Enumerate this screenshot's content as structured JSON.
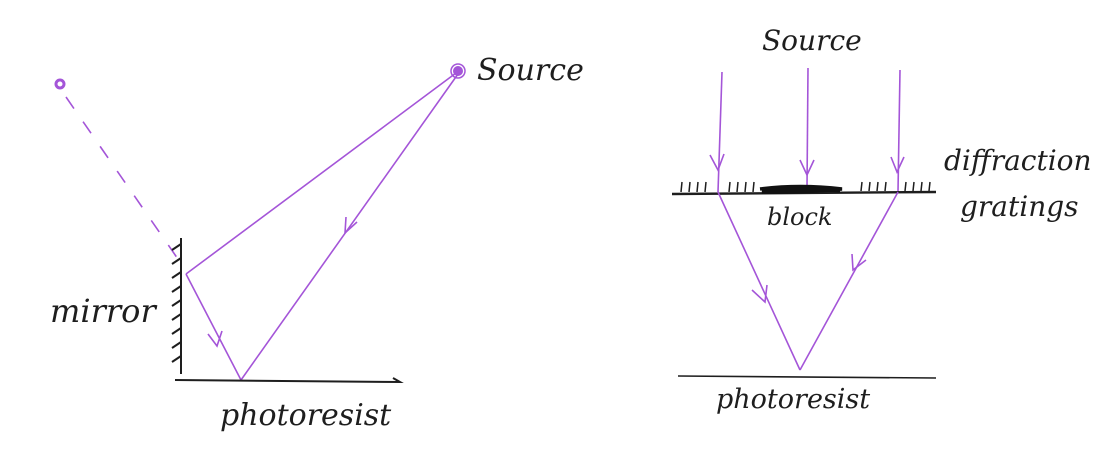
{
  "colors": {
    "ray": "#a455d8",
    "ink": "#1e1e1e",
    "background": "#ffffff"
  },
  "left_diagram": {
    "source_label": "Source",
    "mirror_label": "mirror",
    "photoresist_label": "photoresist"
  },
  "right_diagram": {
    "source_label": "Source",
    "grating_label_line1": "diffraction",
    "grating_label_line2": "gratings",
    "block_label": "block",
    "photoresist_label": "photoresist"
  }
}
